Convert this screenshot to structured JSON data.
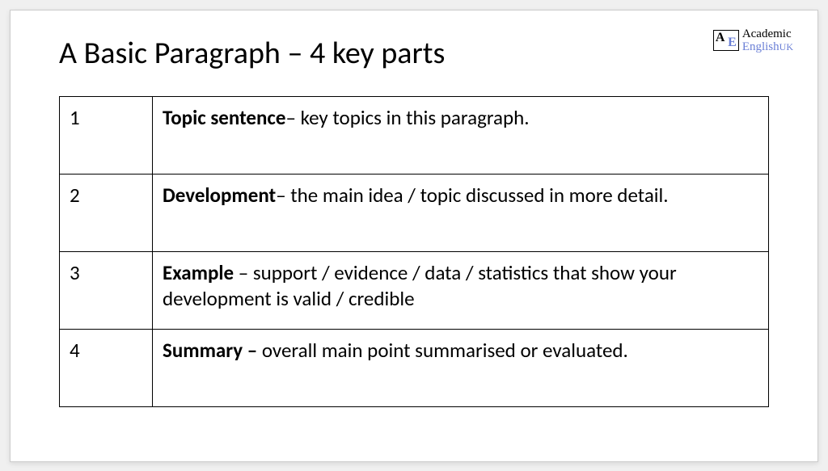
{
  "title": "A Basic Paragraph – 4 key parts",
  "logo": {
    "A": "A",
    "E": "E",
    "line1": "Academic",
    "line2": "English",
    "uk": "UK"
  },
  "table": {
    "rows": [
      {
        "num": "1",
        "bold": "Topic sentence",
        "rest": "– key topics in this paragraph."
      },
      {
        "num": "2",
        "bold": "Development",
        "rest": "– the main idea / topic discussed in more detail."
      },
      {
        "num": "3",
        "bold": "Example ",
        "rest": "– support / evidence / data / statistics that show your development is valid / credible"
      },
      {
        "num": "4",
        "bold": "Summary – ",
        "rest": "overall main point summarised or evaluated."
      }
    ]
  }
}
